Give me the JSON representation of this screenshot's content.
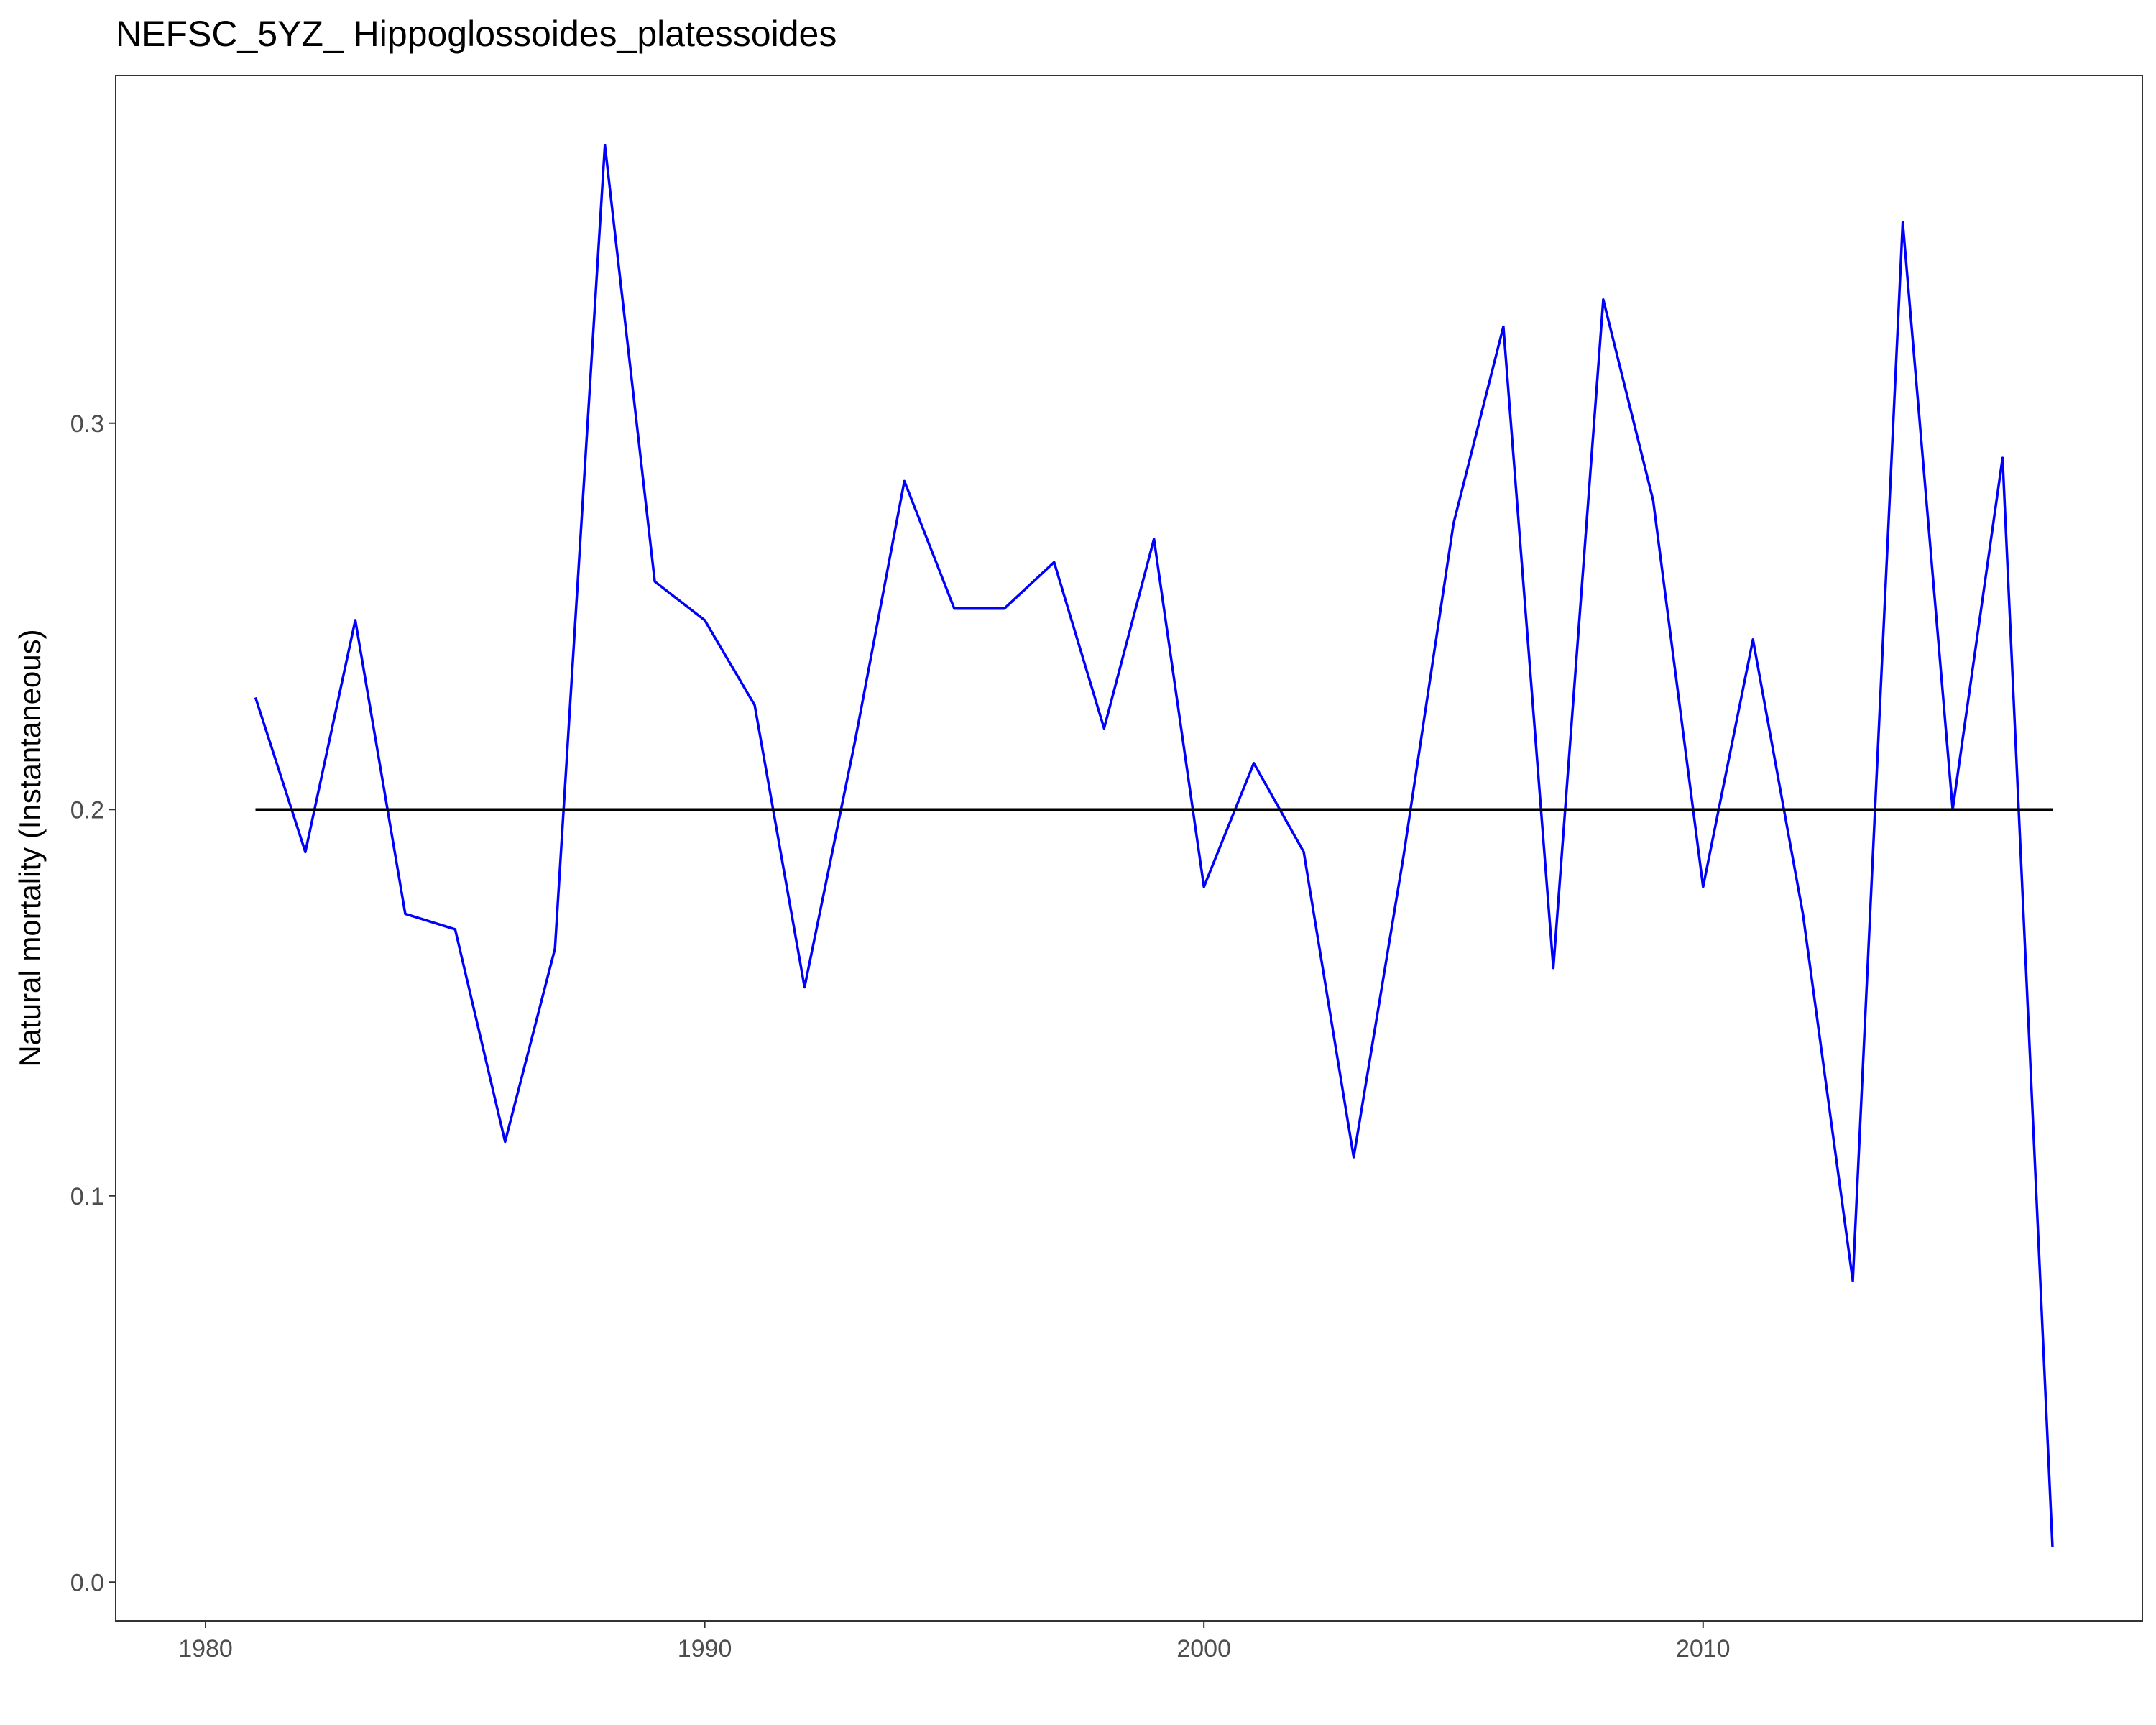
{
  "chart_data": {
    "type": "line",
    "title": "NEFSC_5YZ_ Hippoglossoides_platessoides",
    "xlabel": "",
    "ylabel": "Natural mortality (Instantaneous)",
    "xlim": [
      1978.2,
      2018.8
    ],
    "ylim": [
      -0.01,
      0.39
    ],
    "x_ticks": [
      1980,
      1990,
      2000,
      2010
    ],
    "y_ticks": [
      0.0,
      0.1,
      0.2,
      0.3
    ],
    "x_tick_labels": [
      "1980",
      "1990",
      "2000",
      "2010"
    ],
    "y_tick_labels": [
      "0.0",
      "0.1",
      "0.2",
      "0.3"
    ],
    "grid": false,
    "series": [
      {
        "color": "#0000ff",
        "x": [
          1981,
          1982,
          1983,
          1984,
          1985,
          1986,
          1987,
          1988,
          1989,
          1990,
          1991,
          1992,
          1993,
          1994,
          1995,
          1996,
          1997,
          1998,
          1999,
          2000,
          2001,
          2002,
          2003,
          2004,
          2005,
          2006,
          2007,
          2008,
          2009,
          2010,
          2011,
          2012,
          2013,
          2014,
          2015,
          2016,
          2017
        ],
        "values": [
          0.229,
          0.189,
          0.249,
          0.173,
          0.169,
          0.114,
          0.164,
          0.372,
          0.259,
          0.249,
          0.227,
          0.154,
          0.217,
          0.285,
          0.252,
          0.252,
          0.264,
          0.221,
          0.27,
          0.18,
          0.212,
          0.189,
          0.11,
          0.188,
          0.274,
          0.325,
          0.159,
          0.332,
          0.28,
          0.18,
          0.244,
          0.173,
          0.078,
          0.352,
          0.2,
          0.291,
          0.009
        ]
      },
      {
        "color": "#000000",
        "x": [
          1981,
          2017
        ],
        "values": [
          0.2,
          0.2
        ]
      }
    ]
  }
}
